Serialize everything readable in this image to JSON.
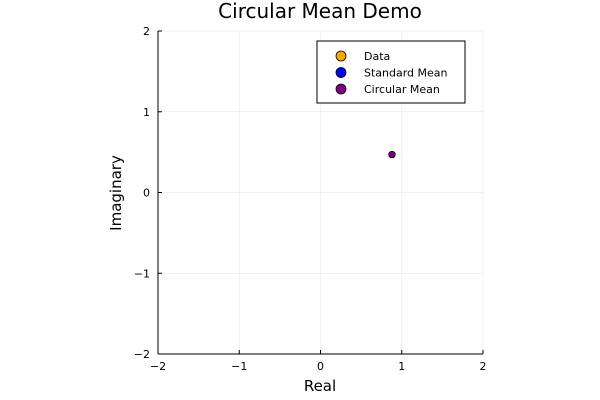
{
  "chart_data": {
    "type": "scatter",
    "title": "Circular Mean Demo",
    "xlabel": "Real",
    "ylabel": "Imaginary",
    "xlim": [
      -2,
      2
    ],
    "ylim": [
      -2,
      2
    ],
    "xticks": [
      -2,
      -1,
      0,
      1,
      2
    ],
    "yticks": [
      -2,
      -1,
      0,
      1,
      2
    ],
    "xtick_labels": [
      "−2",
      "−1",
      "0",
      "1",
      "2"
    ],
    "ytick_labels": [
      "−2",
      "−1",
      "0",
      "1",
      "2"
    ],
    "grid": true,
    "legend_position": "top-right",
    "series": [
      {
        "name": "Data",
        "color": "#FFA500",
        "points": [
          {
            "x": 0.88,
            "y": 0.47
          }
        ]
      },
      {
        "name": "Standard Mean",
        "color": "#0000FF",
        "points": [
          {
            "x": 0.88,
            "y": 0.47
          }
        ]
      },
      {
        "name": "Circular Mean",
        "color": "#800080",
        "points": [
          {
            "x": 0.88,
            "y": 0.47
          }
        ]
      }
    ]
  }
}
